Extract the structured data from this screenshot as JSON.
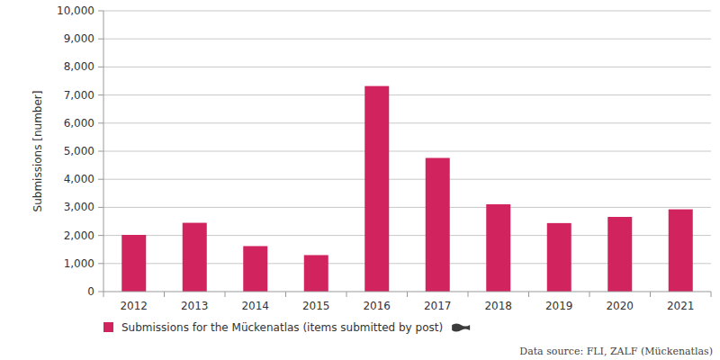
{
  "chart_data": {
    "type": "bar",
    "y_label": "Submissions [number]",
    "categories": [
      "2012",
      "2013",
      "2014",
      "2015",
      "2016",
      "2017",
      "2018",
      "2019",
      "2020",
      "2021"
    ],
    "series": [
      {
        "name": "Submissions for the Mückenatlas (items submitted by post)",
        "color": "#d1245e",
        "values": [
          2020,
          2450,
          1620,
          1300,
          7320,
          4760,
          3110,
          2440,
          2660,
          2930
        ]
      }
    ],
    "ylim": [
      0,
      10000
    ],
    "yticks": [
      0,
      {
        "value": 1000,
        "label": "1,000"
      },
      {
        "value": 2000,
        "label": "2,000"
      },
      {
        "value": 3000,
        "label": "3,000"
      },
      {
        "value": 4000,
        "label": "4,000"
      },
      {
        "value": 5000,
        "label": "5,000"
      },
      {
        "value": 6000,
        "label": "6,000"
      },
      {
        "value": 7000,
        "label": "7,000"
      },
      {
        "value": 8000,
        "label": "8,000"
      },
      {
        "value": 9000,
        "label": "9,000"
      },
      {
        "value": 10000,
        "label": "10,000"
      }
    ],
    "grid": true,
    "legend": "bottom-left",
    "annotations": [
      "Data source: FLI, ZALF (Mückenatlas)"
    ]
  }
}
